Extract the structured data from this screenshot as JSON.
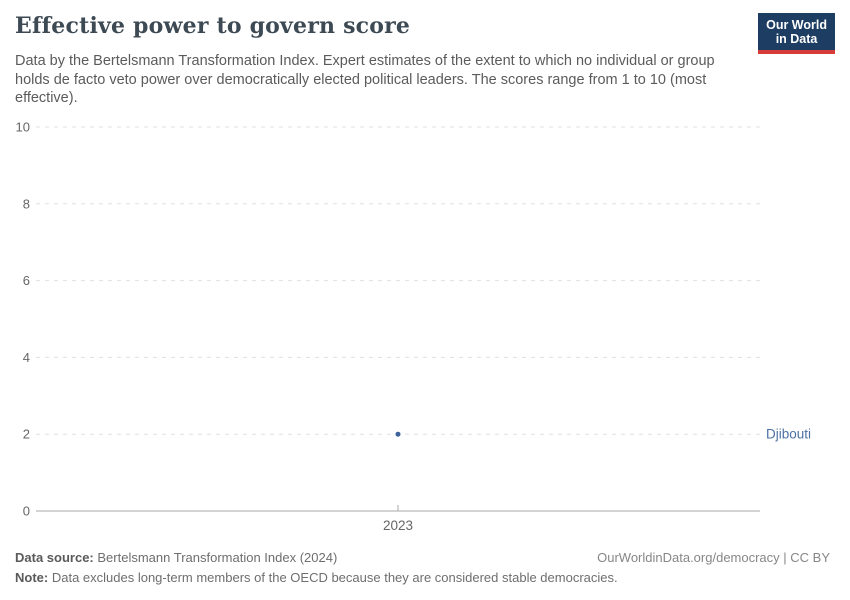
{
  "header": {
    "title": "Effective power to govern score",
    "subtitle": "Data by the Bertelsmann Transformation Index. Expert estimates of the extent to which no individual or group holds de facto veto power over democratically elected political leaders. The scores range from 1 to 10 (most effective)."
  },
  "logo": {
    "line1": "Our World",
    "line2": "in Data",
    "bg_color": "#1d3d63",
    "accent_color": "#d63c39"
  },
  "chart_data": {
    "type": "scatter",
    "title": "Effective power to govern score",
    "ylim": [
      0,
      10
    ],
    "yticks": [
      0,
      2,
      4,
      6,
      8,
      10
    ],
    "x_tick_labels": [
      "2023"
    ],
    "grid": "horizontal dashed, solid baseline at 0",
    "legend_position": "right of last point",
    "series": [
      {
        "name": "Djibouti",
        "x": [
          2023
        ],
        "values": [
          2
        ],
        "point_color": "#3d6399",
        "label_color": "#4c6fa5"
      }
    ]
  },
  "footer": {
    "source_label": "Data source:",
    "source_value": "Bertelsmann Transformation Index (2024)",
    "note_label": "Note:",
    "note_value": "Data excludes long-term members of the OECD because they are considered stable democracies.",
    "rights": "OurWorldinData.org/democracy | CC BY"
  }
}
